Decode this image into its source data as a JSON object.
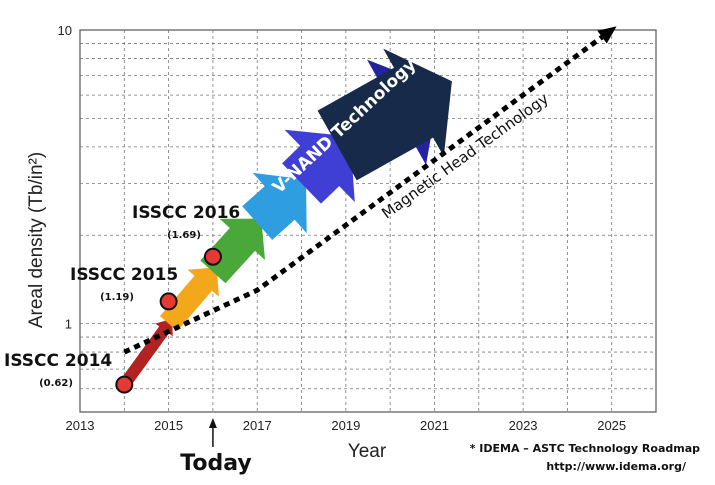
{
  "chart_data": {
    "type": "line",
    "xlabel": "Year",
    "ylabel": "Areal density (Tb/in²)",
    "x_scale": "linear",
    "y_scale": "log",
    "xlim": [
      2013,
      2026
    ],
    "ylim": [
      0.5,
      10
    ],
    "x_ticks": [
      2013,
      2015,
      2017,
      2019,
      2021,
      2023,
      2025
    ],
    "y_ticks": [
      1,
      10
    ],
    "y_tick_labels": [
      "1",
      "10"
    ],
    "grid": true,
    "series": [
      {
        "name": "Magnetic Head Technology",
        "style": "dotted",
        "color": "#000000",
        "x": [
          2014,
          2017,
          2025
        ],
        "y": [
          0.8,
          1.3,
          10
        ]
      }
    ],
    "points": [
      {
        "label": "ISSCC 2014",
        "value_label": "(0.62)",
        "x": 2014,
        "y": 0.62
      },
      {
        "label": "ISSCC 2015",
        "value_label": "(1.19)",
        "x": 2015,
        "y": 1.19
      },
      {
        "label": "ISSCC 2016",
        "value_label": "(1.69)",
        "x": 2016,
        "y": 1.69
      }
    ],
    "arrow_band": {
      "label": "V-NAND Technology",
      "segments": [
        {
          "x": 2014,
          "y": 0.62,
          "color": "#b22222"
        },
        {
          "x": 2015,
          "y": 1.0,
          "color": "#f3a81b"
        },
        {
          "x": 2016,
          "y": 1.5,
          "color": "#4aa83a"
        },
        {
          "x": 2017,
          "y": 2.2,
          "color": "#2f9ee0"
        },
        {
          "x": 2018,
          "y": 3.0,
          "color": "#3f3fd6"
        },
        {
          "x": 2019,
          "y": 4.2,
          "color": "#2424a0"
        },
        {
          "x": 2021,
          "y": 6.2,
          "color": "#182a4a"
        }
      ]
    },
    "annotations": {
      "today": {
        "label": "Today",
        "x": 2016
      },
      "source_line1": "* IDEMA – ASTC Technology Roadmap",
      "source_line2": "http://www.idema.org/"
    }
  }
}
